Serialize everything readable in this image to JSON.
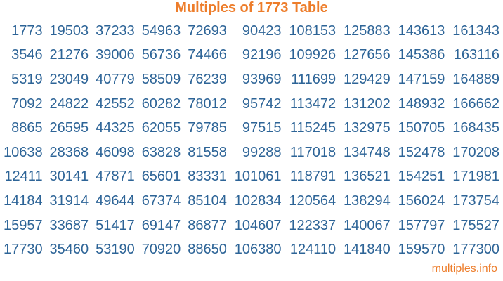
{
  "page": {
    "title": "Multiples of 1773 Table",
    "footer_link": "multiples.info"
  },
  "colors": {
    "accent_orange": "#ED7D2B",
    "number_blue": "#2D6497",
    "background": "#FFFFFF"
  },
  "table": {
    "base_number": 1773,
    "rows": [
      [
        1773,
        19503,
        37233,
        54963,
        72693,
        90423,
        108153,
        125883,
        143613,
        161343
      ],
      [
        3546,
        21276,
        39006,
        56736,
        74466,
        92196,
        109926,
        127656,
        145386,
        163116
      ],
      [
        5319,
        23049,
        40779,
        58509,
        76239,
        93969,
        111699,
        129429,
        147159,
        164889
      ],
      [
        7092,
        24822,
        42552,
        60282,
        78012,
        95742,
        113472,
        131202,
        148932,
        166662
      ],
      [
        8865,
        26595,
        44325,
        62055,
        79785,
        97515,
        115245,
        132975,
        150705,
        168435
      ],
      [
        10638,
        28368,
        46098,
        63828,
        81558,
        99288,
        117018,
        134748,
        152478,
        170208
      ],
      [
        12411,
        30141,
        47871,
        65601,
        83331,
        101061,
        118791,
        136521,
        154251,
        171981
      ],
      [
        14184,
        31914,
        49644,
        67374,
        85104,
        102834,
        120564,
        138294,
        156024,
        173754
      ],
      [
        15957,
        33687,
        51417,
        69147,
        86877,
        104607,
        122337,
        140067,
        157797,
        175527
      ],
      [
        17730,
        35460,
        53190,
        70920,
        88650,
        106380,
        124110,
        141840,
        159570,
        177300
      ]
    ]
  }
}
